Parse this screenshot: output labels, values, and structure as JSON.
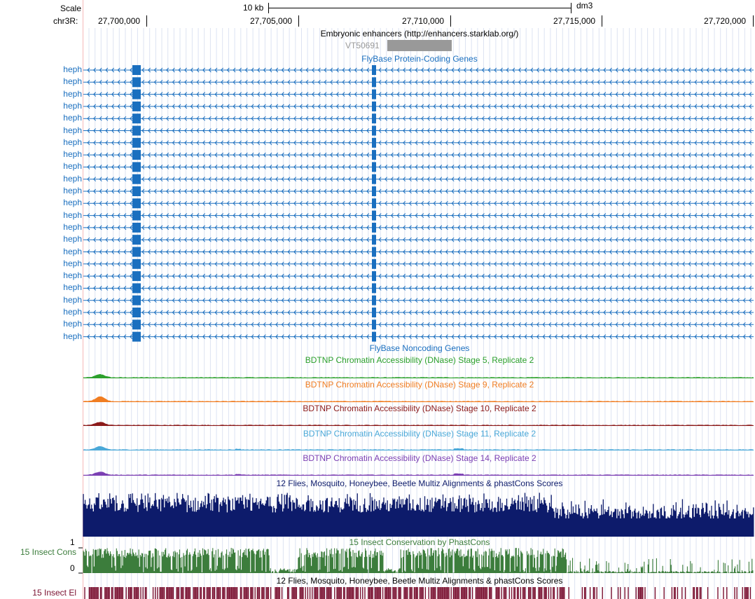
{
  "header": {
    "scale_label": "Scale",
    "scale_value": "10 kb",
    "assembly": "dm3",
    "chrom_label": "chr3R:",
    "positions": [
      "27,700,000",
      "27,705,000",
      "27,710,000",
      "27,715,000",
      "27,720,000"
    ]
  },
  "enhancers": {
    "title": "Embryonic enhancers (http://enhancers.starklab.org/)",
    "item_label": "VT50691",
    "item_color": "#999999"
  },
  "genes": {
    "title": "FlyBase Protein-Coding Genes",
    "color": "#1a6fbf",
    "rows": [
      "heph",
      "heph",
      "heph",
      "heph",
      "heph",
      "heph",
      "heph",
      "heph",
      "heph",
      "heph",
      "heph",
      "heph",
      "heph",
      "heph",
      "heph",
      "heph",
      "heph",
      "heph",
      "heph",
      "heph",
      "heph",
      "heph",
      "heph"
    ]
  },
  "noncoding": {
    "title": "FlyBase Noncoding Genes",
    "color": "#1a6fbf"
  },
  "dnase_tracks": [
    {
      "title": "BDTNP Chromatin Accessibility (DNase) Stage 5, Replicate 2",
      "color": "#2ca02c"
    },
    {
      "title": "BDTNP Chromatin Accessibility (DNase) Stage 9, Replicate 2",
      "color": "#f07d22"
    },
    {
      "title": "BDTNP Chromatin Accessibility (DNase) Stage 10, Replicate 2",
      "color": "#8b1a1a"
    },
    {
      "title": "BDTNP Chromatin Accessibility (DNase) Stage 11, Replicate 2",
      "color": "#4aa8d8"
    },
    {
      "title": "BDTNP Chromatin Accessibility (DNase) Stage 14, Replicate 2",
      "color": "#7b3fb3"
    }
  ],
  "multiz": {
    "title": "12 Flies, Mosquito, Honeybee, Beetle Multiz Alignments & phastCons Scores",
    "color": "#0d1b6b"
  },
  "phastcons": {
    "title": "15 Insect Conservation by PhastCons",
    "side_label": "15 Insect Cons",
    "axis_max": "1",
    "axis_min": "0",
    "color": "#3c7d3c"
  },
  "elements": {
    "title": "12 Flies, Mosquito, Honeybee, Beetle Multiz Alignments & phastCons Scores",
    "side_label": "15 Insect El",
    "color": "#7a1030"
  }
}
